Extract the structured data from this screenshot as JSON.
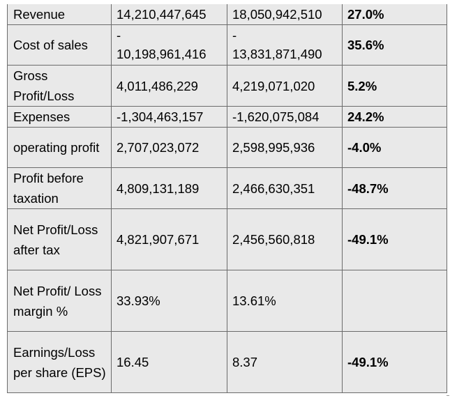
{
  "table": {
    "rows": [
      {
        "label": "Revenue",
        "col1": "14,210,447,645",
        "col2": "18,050,942,510",
        "change": "27.0%"
      },
      {
        "label": "Cost of sales",
        "col1_sign": "-",
        "col1": "10,198,961,416",
        "col2_sign": "-",
        "col2": "13,831,871,490",
        "change": "35.6%"
      },
      {
        "label": "Gross Profit/Loss",
        "col1": "4,011,486,229",
        "col2": "4,219,071,020",
        "change": "5.2%"
      },
      {
        "label": "Expenses",
        "col1": "-1,304,463,157",
        "col2": "-1,620,075,084",
        "change": "24.2%"
      },
      {
        "label": "operating profit",
        "col1": "2,707,023,072",
        "col2": "2,598,995,936",
        "change": "-4.0%"
      },
      {
        "label": "Profit before taxation",
        "col1": "4,809,131,189",
        "col2": "2,466,630,351",
        "change": "-48.7%"
      },
      {
        "label": "Net Profit/Loss after tax",
        "col1": "4,821,907,671",
        "col2": "2,456,560,818",
        "change": "-49.1%"
      },
      {
        "label": "Net Profit/ Loss margin %",
        "col1": "33.93%",
        "col2": "13.61%",
        "change": ""
      },
      {
        "label": "Earnings/Loss per share (EPS)",
        "col1": "16.45",
        "col2": "8.37",
        "change": "-49.1%"
      }
    ]
  }
}
